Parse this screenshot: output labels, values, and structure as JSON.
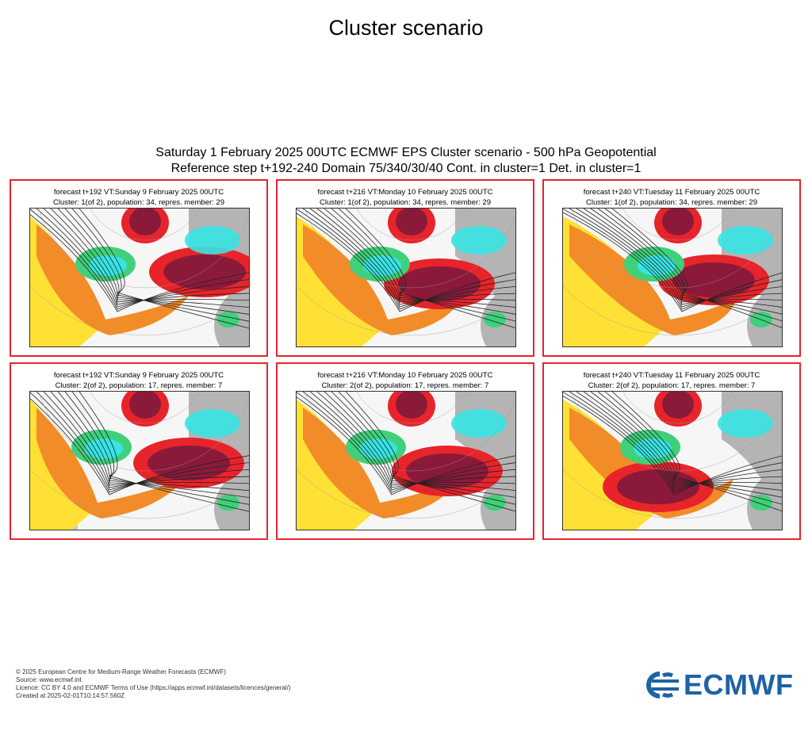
{
  "page": {
    "title": "Cluster scenario",
    "figure_title_line1": "Saturday 1 February 2025 00UTC ECMWF EPS Cluster scenario - 500 hPa Geopotential",
    "figure_title_line2": "Reference step t+192-240 Domain 75/340/30/40 Cont. in cluster=1 Det. in cluster=1"
  },
  "panels": [
    {
      "title_line1": "forecast t+192 VT:Sunday 9 February 2025 00UTC",
      "title_line2": "Cluster: 1(of 2), population: 34, repres. member: 29"
    },
    {
      "title_line1": "forecast t+216 VT:Monday 10 February 2025 00UTC",
      "title_line2": "Cluster: 1(of 2), population: 34, repres. member: 29"
    },
    {
      "title_line1": "forecast t+240 VT:Tuesday 11 February 2025 00UTC",
      "title_line2": "Cluster: 1(of 2), population: 34, repres. member: 29"
    },
    {
      "title_line1": "forecast t+192 VT:Sunday 9 February 2025 00UTC",
      "title_line2": "Cluster: 2(of 2), population: 17, repres. member: 7"
    },
    {
      "title_line1": "forecast t+216 VT:Monday 10 February 2025 00UTC",
      "title_line2": "Cluster: 2(of 2), population: 17, repres. member: 7"
    },
    {
      "title_line1": "forecast t+240 VT:Tuesday 11 February 2025 00UTC",
      "title_line2": "Cluster: 2(of 2), population: 17, repres. member: 7"
    }
  ],
  "footer": {
    "line1": "© 2025 European Centre for Medium-Range Weather Forecasts (ECMWF)",
    "line2": "Source: www.ecmwf.int",
    "line3": "Licence: CC BY 4.0 and ECMWF Terms of Use (https://apps.ecmwf.int/datasets/licences/general/)",
    "line4": "Created at 2025-02-01T10:14:57.560Z"
  },
  "logo": {
    "text": "ECMWF",
    "color": "#1d63a5"
  },
  "colors": {
    "panel_border": "#e8242b",
    "anomaly_strong_positive": "#8b1a3a",
    "anomaly_positive": "#e8242b",
    "anomaly_moderate": "#f28c28",
    "anomaly_weak": "#ffe135",
    "anomaly_negative": "#3fd07a",
    "anomaly_strong_negative": "#37e4e4",
    "land": "#9e9e9e"
  }
}
